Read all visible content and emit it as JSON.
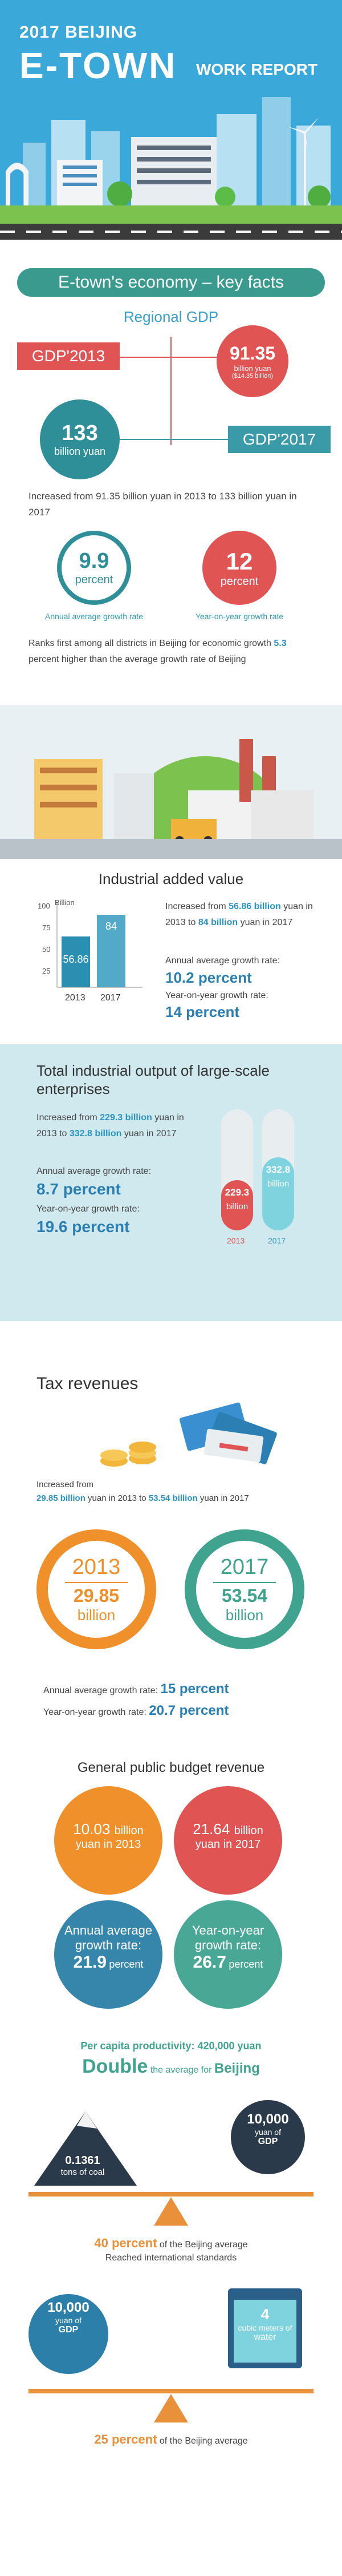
{
  "header": {
    "small_title": "2017 BEIJING",
    "big_title": "E-TOWN",
    "sub_title": "WORK REPORT"
  },
  "economy": {
    "banner": "E-town's economy – key facts",
    "gdp_title": "Regional GDP",
    "gdp2013_label": "GDP'2013",
    "gdp2017_label": "GDP'2017",
    "gdp2013_value": "91.35",
    "gdp2013_unit": "billion yuan",
    "gdp2013_usd": "($14.35 billion)",
    "gdp2017_value": "133",
    "gdp2017_unit": "billion yuan",
    "increase_text": "Increased from 91.35 billion yuan in 2013 to 133 billion yuan in 2017",
    "annual_rate_value": "9.9",
    "annual_rate_unit": "percent",
    "annual_rate_label": "Annual average growth rate",
    "yoy_rate_value": "12",
    "yoy_rate_unit": "percent",
    "yoy_rate_label": "Year-on-year growth rate",
    "rank_text_1": "Ranks first among all districts in Beijing for economic growth",
    "rank_value": "5.3",
    "rank_text_2": " percent higher than the average growth rate of Beijing"
  },
  "industrial": {
    "title": "Industrial added value",
    "axis_label": "Billion",
    "ticks": [
      "100",
      "75",
      "50",
      "25"
    ],
    "years": [
      "2013",
      "2017"
    ],
    "bar_values_text": [
      "56.86",
      "84"
    ],
    "increase_pre": "Increased from ",
    "increase_v1": "56.86 billion",
    "increase_mid": " yuan in 2013 to ",
    "increase_v2": "84 billion",
    "increase_post": " yuan in 2017",
    "annual_label": "Annual average growth rate:",
    "annual_value": "10.2 percent",
    "yoy_label": "Year-on-year growth rate:",
    "yoy_value": "14 percent"
  },
  "output": {
    "title": "Total industrial output of large-scale enterprises",
    "increase_pre": "Increased from ",
    "increase_v1": "229.3 billion",
    "increase_mid": " yuan in 2013 to ",
    "increase_v2": "332.8 billion",
    "increase_post": " yuan in 2017",
    "annual_label": "Annual average growth rate:",
    "annual_value": "8.7 percent",
    "yoy_label": "Year-on-year growth rate:",
    "yoy_value": "19.6 percent",
    "bar1_value": "229.3",
    "bar1_unit": "billion",
    "bar2_value": "332.8",
    "bar2_unit": "billion",
    "year1": "2013",
    "year2": "2017"
  },
  "tax": {
    "title": "Tax revenues",
    "increase_pre": "Increased from",
    "increase_v1": "29.85 billion",
    "increase_mid": " yuan in 2013 to ",
    "increase_v2": "53.54 billion",
    "increase_post": " yuan in 2017",
    "year1": "2013",
    "value1": "29.85",
    "unit1": "billion",
    "year2": "2017",
    "value2": "53.54",
    "unit2": "billion",
    "annual_label": "Annual average growth rate: ",
    "annual_value": "15 percent",
    "yoy_label": "Year-on-year growth rate: ",
    "yoy_value": "20.7 percent"
  },
  "budget": {
    "title": "General public budget revenue",
    "c1_value": "10.03",
    "c1_unit": "billion",
    "c1_sub": "yuan in 2013",
    "c2_value": "21.64",
    "c2_unit": "billion",
    "c2_sub": "yuan in 2017",
    "c3_label": "Annual average growth rate:",
    "c3_value": "21.9",
    "c3_unit": "percent",
    "c4_label": "Year-on-year growth rate:",
    "c4_value": "26.7",
    "c4_unit": "percent"
  },
  "productivity": {
    "line1": "Per capita productivity: 420,000 yuan",
    "double_word": "Double",
    "double_mid": " the average for ",
    "double_city": "Beijing",
    "coal_value": "0.1361",
    "coal_unit": "tons of coal",
    "gdp_value": "10,000",
    "gdp_unit": "yuan of",
    "gdp_word": "GDP",
    "pct1_value": "40 percent",
    "pct1_text": " of the Beijing average",
    "pct1_sub": "Reached international standards",
    "gdp2_value": "10,000",
    "gdp2_unit": "yuan of",
    "gdp2_word": "GDP",
    "water_value": "4",
    "water_unit": "cubic meters of",
    "water_word": "water",
    "pct2_value": "25 percent",
    "pct2_text": " of the Beijing average"
  },
  "colors": {
    "teal": "#3a9a8e",
    "red": "#e05454",
    "blue": "#2b7fb3",
    "orange": "#f0902a",
    "green_teal": "#3fa38f"
  }
}
